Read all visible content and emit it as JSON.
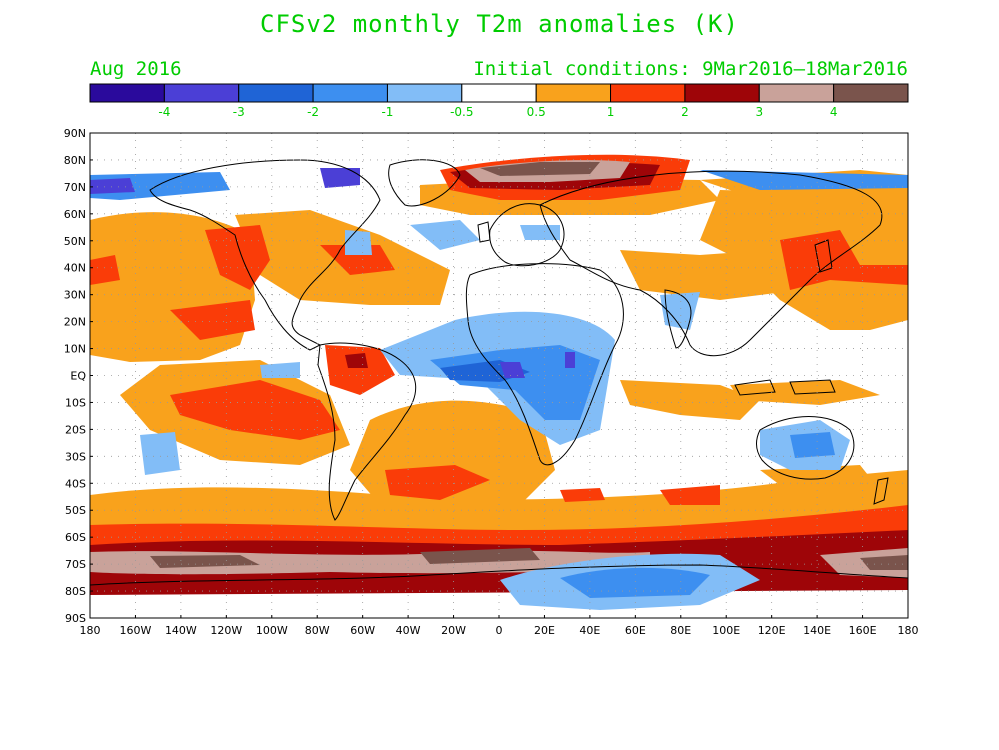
{
  "title": "CFSv2 monthly T2m anomalies (K)",
  "period": "Aug 2016",
  "initial_conditions": "Initial conditions: 9Mar2016–18Mar2016",
  "legend": {
    "colors": [
      "#2a0a9c",
      "#4b3fd6",
      "#1f64d6",
      "#3d8ff0",
      "#82bdf7",
      "#ffffff",
      "#f9a21c",
      "#fa3c08",
      "#9e0508",
      "#c9a29a",
      "#7a544c"
    ],
    "labels": [
      "-4",
      "-3",
      "-2",
      "-1",
      "-0.5",
      "0.5",
      "1",
      "2",
      "3",
      "4"
    ]
  },
  "axes": {
    "lat_labels": [
      "90N",
      "80N",
      "70N",
      "60N",
      "50N",
      "40N",
      "30N",
      "20N",
      "10N",
      "EQ",
      "10S",
      "20S",
      "30S",
      "40S",
      "50S",
      "60S",
      "70S",
      "80S",
      "90S"
    ],
    "lon_labels": [
      "180",
      "160W",
      "140W",
      "120W",
      "100W",
      "80W",
      "60W",
      "40W",
      "20W",
      "0",
      "20E",
      "40E",
      "60E",
      "80E",
      "100E",
      "120E",
      "140E",
      "160E",
      "180"
    ]
  },
  "colors": {
    "text": "#00cc00",
    "warm_1": "#f9a21c",
    "warm_2": "#fa3c08",
    "warm_3": "#9e0508",
    "warm_4": "#c9a29a",
    "warm_5": "#7a544c",
    "cool_1": "#82bdf7",
    "cool_2": "#3d8ff0",
    "cool_3": "#1f64d6",
    "cool_4": "#4b3fd6",
    "cool_5": "#2a0a9c"
  }
}
